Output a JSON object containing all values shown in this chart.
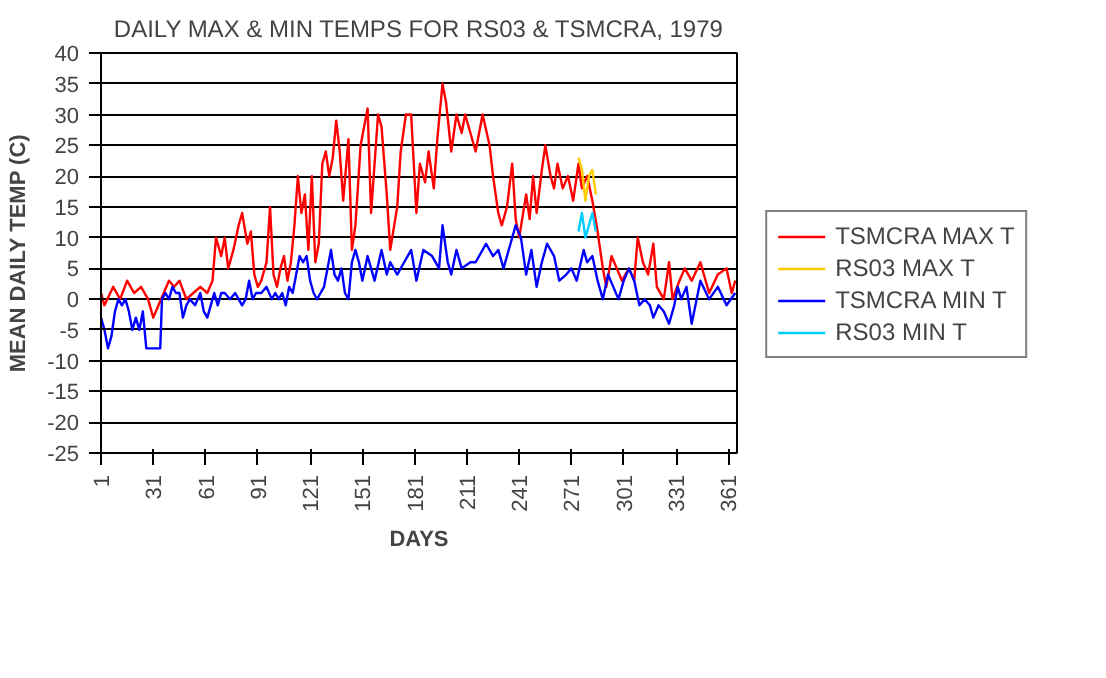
{
  "chart_data": {
    "type": "line",
    "title": "DAILY MAX & MIN TEMPS FOR RS03 & TSMCRA, 1979",
    "xlabel": "DAYS",
    "ylabel": "MEAN DAILY TEMP (C)",
    "xlim": [
      1,
      366
    ],
    "xticks": [
      1,
      31,
      61,
      91,
      121,
      151,
      181,
      211,
      241,
      271,
      301,
      331,
      361
    ],
    "ylim": [
      -25,
      40
    ],
    "yticks": [
      -25,
      -20,
      -15,
      -10,
      -5,
      0,
      5,
      10,
      15,
      20,
      25,
      30,
      35,
      40
    ],
    "grid": "y",
    "legend": "right",
    "line_style": "solid",
    "marker": "none",
    "series": [
      {
        "name": "TSMCRA MAX T",
        "color": "#ff0000",
        "x": [
          1,
          3,
          8,
          12,
          16,
          20,
          24,
          28,
          31,
          34,
          37,
          40,
          43,
          46,
          50,
          54,
          58,
          62,
          65,
          67,
          70,
          72,
          74,
          77,
          80,
          82,
          85,
          87,
          89,
          91,
          93,
          96,
          98,
          100,
          102,
          104,
          106,
          108,
          110,
          112,
          114,
          116,
          118,
          120,
          122,
          124,
          126,
          128,
          130,
          132,
          134,
          136,
          138,
          140,
          143,
          145,
          147,
          150,
          154,
          156,
          160,
          162,
          165,
          167,
          171,
          173,
          176,
          179,
          182,
          184,
          187,
          189,
          192,
          194,
          197,
          199,
          202,
          205,
          208,
          210,
          213,
          216,
          220,
          224,
          226,
          229,
          231,
          234,
          237,
          239,
          241,
          245,
          247,
          249,
          251,
          254,
          256,
          259,
          261,
          263,
          266,
          269,
          272,
          275,
          277,
          280,
          283,
          286,
          289,
          291,
          294,
          297,
          300,
          304,
          307,
          309,
          312,
          315,
          318,
          320,
          324,
          327,
          329,
          333,
          336,
          340,
          345,
          350,
          355,
          360,
          363,
          365
        ],
        "values": [
          1,
          -1,
          2,
          0,
          3,
          1,
          2,
          0,
          -3,
          -1,
          1,
          3,
          2,
          3,
          0,
          1,
          2,
          1,
          3,
          10,
          7,
          10,
          5,
          8,
          12,
          14,
          9,
          11,
          4,
          2,
          3,
          6,
          15,
          4,
          2,
          5,
          7,
          3,
          6,
          12,
          20,
          14,
          17,
          8,
          20,
          6,
          9,
          22,
          24,
          20,
          23,
          29,
          24,
          16,
          26,
          8,
          12,
          25,
          31,
          14,
          30,
          28,
          17,
          8,
          15,
          24,
          30,
          30,
          14,
          22,
          19,
          24,
          18,
          26,
          35,
          32,
          24,
          30,
          27,
          30,
          27,
          24,
          30,
          25,
          20,
          14,
          12,
          15,
          22,
          13,
          10,
          17,
          13,
          20,
          14,
          21,
          25,
          20,
          18,
          22,
          18,
          20,
          16,
          22,
          18,
          20,
          16,
          11,
          5,
          2,
          7,
          5,
          3,
          5,
          3,
          10,
          6,
          4,
          9,
          2,
          0,
          6,
          0,
          3,
          5,
          3,
          6,
          1,
          4,
          5,
          1,
          3
        ]
      },
      {
        "name": "RS03 MAX T",
        "color": "#ffcc00",
        "x": [
          275,
          277,
          279,
          281,
          283,
          285
        ],
        "values": [
          23,
          21,
          16,
          20,
          21,
          17
        ]
      },
      {
        "name": "TSMCRA MIN T",
        "color": "#0000ff",
        "x": [
          1,
          3,
          5,
          7,
          9,
          11,
          13,
          15,
          17,
          19,
          21,
          23,
          25,
          27,
          29,
          35,
          36,
          38,
          40,
          42,
          44,
          46,
          48,
          50,
          52,
          55,
          58,
          60,
          62,
          64,
          66,
          68,
          70,
          72,
          75,
          78,
          80,
          82,
          84,
          86,
          88,
          90,
          93,
          96,
          99,
          101,
          103,
          105,
          107,
          109,
          111,
          113,
          115,
          117,
          119,
          121,
          123,
          125,
          127,
          129,
          131,
          133,
          135,
          137,
          139,
          141,
          143,
          145,
          147,
          149,
          151,
          154,
          158,
          162,
          165,
          167,
          171,
          175,
          179,
          182,
          186,
          191,
          195,
          197,
          200,
          202,
          205,
          208,
          213,
          216,
          222,
          226,
          229,
          232,
          236,
          239,
          242,
          245,
          248,
          251,
          254,
          257,
          261,
          264,
          268,
          271,
          274,
          278,
          280,
          283,
          286,
          289,
          292,
          295,
          298,
          301,
          304,
          307,
          310,
          313,
          316,
          318,
          321,
          324,
          327,
          330,
          332,
          334,
          337,
          340,
          345,
          350,
          355,
          360,
          365
        ],
        "values": [
          -3,
          -5,
          -8,
          -6,
          -2,
          0,
          -1,
          0,
          -2,
          -5,
          -3,
          -5,
          -2,
          -8,
          -8,
          -8,
          0,
          1,
          0,
          2,
          1,
          1,
          -3,
          -1,
          0,
          -1,
          1,
          -2,
          -3,
          -1,
          1,
          -1,
          1,
          1,
          0,
          1,
          0,
          -1,
          0,
          3,
          0,
          1,
          1,
          2,
          0,
          1,
          0,
          1,
          -1,
          2,
          1,
          4,
          7,
          6,
          7,
          3,
          1,
          0,
          1,
          2,
          5,
          8,
          4,
          3,
          5,
          1,
          0,
          6,
          8,
          6,
          3,
          7,
          3,
          8,
          4,
          6,
          4,
          6,
          8,
          3,
          8,
          7,
          5,
          12,
          6,
          4,
          8,
          5,
          6,
          6,
          9,
          7,
          8,
          5,
          9,
          12,
          10,
          4,
          8,
          2,
          6,
          9,
          7,
          3,
          4,
          5,
          3,
          8,
          6,
          7,
          3,
          0,
          4,
          2,
          0,
          3,
          5,
          3,
          -1,
          0,
          -1,
          -3,
          -1,
          -2,
          -4,
          -1,
          2,
          0,
          2,
          -4,
          3,
          0,
          2,
          -1,
          1
        ]
      },
      {
        "name": "RS03 MIN T",
        "color": "#00ccff",
        "x": [
          275,
          277,
          279,
          281,
          283,
          285
        ],
        "values": [
          11,
          14,
          10,
          12,
          14,
          11
        ]
      }
    ]
  }
}
